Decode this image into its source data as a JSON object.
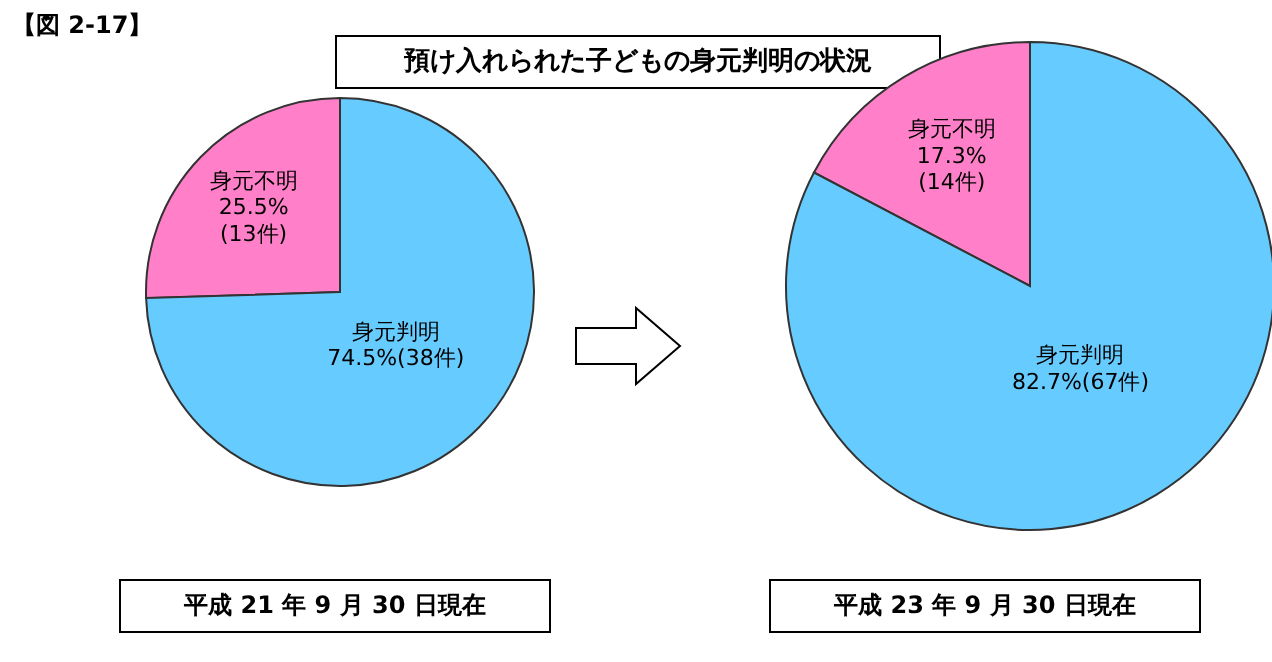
{
  "chart_data": [
    {
      "type": "pie",
      "title": "預け入れられた子どもの身元判明の状況",
      "annotations": [
        "【図 2-17】",
        "平成 21 年 9 月 30 日現在"
      ],
      "categories": [
        "身元不明",
        "身元判明"
      ],
      "values": [
        25.5,
        74.5
      ],
      "colors": [
        "#ff80c8",
        "#66ccff"
      ],
      "value_labels": [
        "25.5%\n(13件)",
        "74.5%(38件)"
      ],
      "legend": false
    },
    {
      "type": "pie",
      "annotations": [
        "平成 23 年 9 月 30 日現在"
      ],
      "categories": [
        "身元不明",
        "身元判明"
      ],
      "values": [
        17.3,
        82.7
      ],
      "colors": [
        "#ff80c8",
        "#66ccff"
      ],
      "value_labels": [
        "17.3%\n(14件)",
        "82.7%(67件)"
      ],
      "legend": false
    }
  ]
}
